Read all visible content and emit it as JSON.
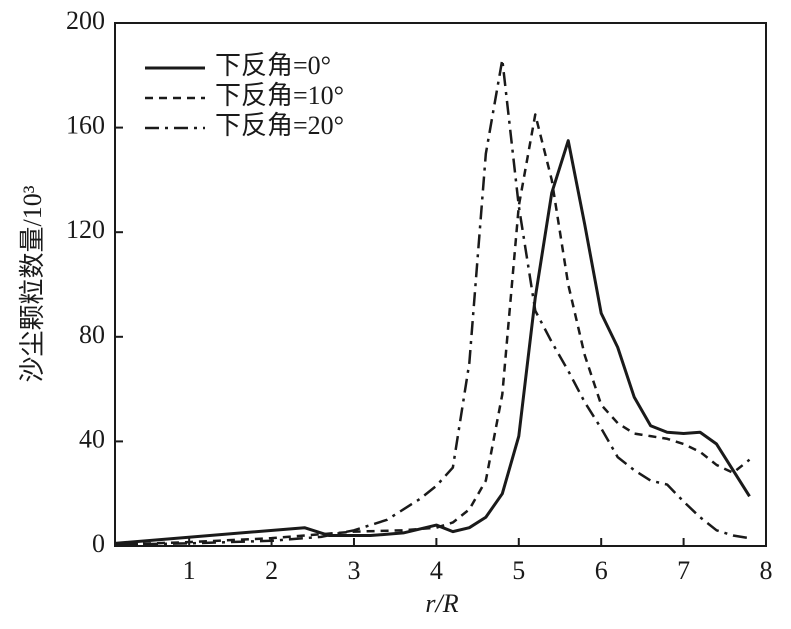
{
  "chart_data": {
    "type": "line",
    "xlabel": "r/R",
    "ylabel": "沙尘颗粒数量/10³",
    "xlim": [
      0.1,
      8
    ],
    "xticks": [
      1,
      2,
      3,
      4,
      5,
      6,
      7,
      8
    ],
    "ylim": [
      0,
      200
    ],
    "yticks": [
      0,
      40,
      80,
      120,
      160,
      200
    ],
    "legend": "upper-left",
    "series": [
      {
        "name": "下反角=0°",
        "color": "#1a1a1a",
        "dash": "solid",
        "x": [
          0.1,
          2.4,
          2.7,
          3.2,
          3.6,
          4,
          4.2,
          4.4,
          4.6,
          4.8,
          5,
          5.2,
          5.4,
          5.6,
          5.8,
          6,
          6.2,
          6.4,
          6.6,
          6.8,
          7,
          7.2,
          7.4,
          7.6,
          7.8
        ],
        "values": [
          1,
          7,
          4,
          4,
          5,
          8,
          5.5,
          7,
          11,
          20,
          42,
          95,
          135,
          155,
          123,
          89,
          76,
          57,
          46,
          43.5,
          43,
          43.5,
          39,
          29,
          19
        ]
      },
      {
        "name": "下反角=10°",
        "color": "#1a1a1a",
        "dash": "dashed",
        "x": [
          0.1,
          1,
          2,
          3,
          3.6,
          4,
          4.2,
          4.4,
          4.6,
          4.8,
          5,
          5.2,
          5.4,
          5.6,
          5.8,
          6,
          6.2,
          6.4,
          6.6,
          6.8,
          7,
          7.2,
          7.4,
          7.6,
          7.8
        ],
        "values": [
          0.5,
          1.5,
          3,
          5.5,
          6,
          7,
          9,
          14,
          25,
          58,
          130,
          165,
          140,
          100,
          73,
          54,
          47,
          43,
          42,
          41,
          39,
          36,
          31,
          28,
          33
        ]
      },
      {
        "name": "下反角=20°",
        "color": "#1a1a1a",
        "dash": "dashdot",
        "x": [
          0.1,
          1,
          2,
          2.6,
          3,
          3.4,
          3.8,
          4,
          4.2,
          4.4,
          4.6,
          4.8,
          5,
          5.2,
          5.4,
          5.6,
          5.8,
          6,
          6.2,
          6.4,
          6.6,
          6.8,
          7,
          7.2,
          7.4,
          7.6,
          7.8
        ],
        "values": [
          0.5,
          1,
          2,
          3.5,
          6,
          10,
          18,
          23,
          30,
          70,
          150,
          186,
          130,
          90,
          78,
          67,
          55,
          45,
          34,
          29,
          25,
          23.5,
          17,
          11,
          6,
          4,
          3
        ]
      }
    ]
  }
}
